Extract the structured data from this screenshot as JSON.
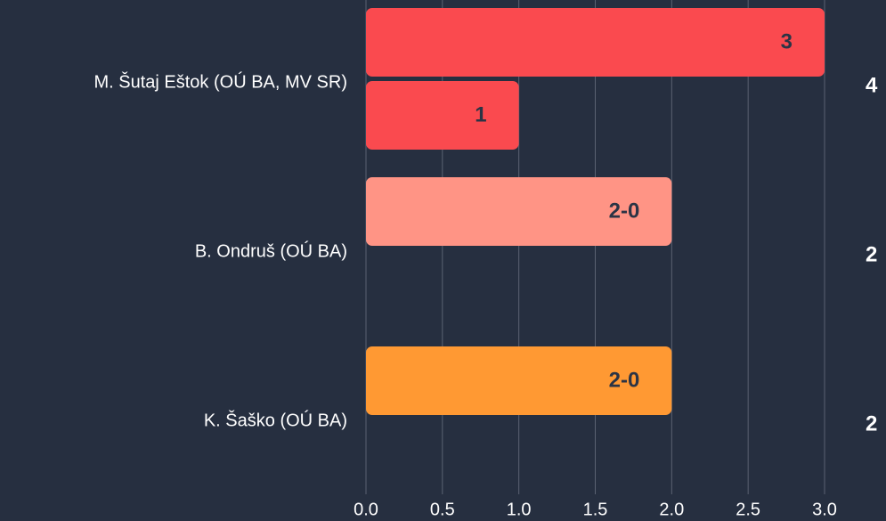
{
  "chart_data": {
    "type": "bar",
    "orientation": "horizontal",
    "groups": [
      {
        "name": "M. Šutaj Eštok (OÚ BA, MV SR)",
        "total": 4,
        "bars": [
          {
            "value": 3,
            "color": "#fa4a4f"
          },
          {
            "value": 1,
            "color": "#fa4a4f"
          }
        ]
      },
      {
        "name": "B. Ondruš (OÚ BA)",
        "total": 2,
        "bars": [
          {
            "value": 2,
            "label": "2-0",
            "color": "#ff9485"
          }
        ]
      },
      {
        "name": "K. Šaško (OÚ BA)",
        "total": 2,
        "bars": [
          {
            "value": 2,
            "label": "2-0",
            "color": "#ff9933"
          }
        ]
      }
    ],
    "xlim": [
      0,
      3
    ],
    "xticks": [
      {
        "value": 0,
        "label": "0.0"
      },
      {
        "value": 0.5,
        "label": "0.5"
      },
      {
        "value": 1,
        "label": "1.0"
      },
      {
        "value": 1.5,
        "label": "1.5"
      },
      {
        "value": 2,
        "label": "2.0"
      },
      {
        "value": 2.5,
        "label": "2.5"
      },
      {
        "value": 3,
        "label": "3.0"
      }
    ],
    "grid": true
  }
}
